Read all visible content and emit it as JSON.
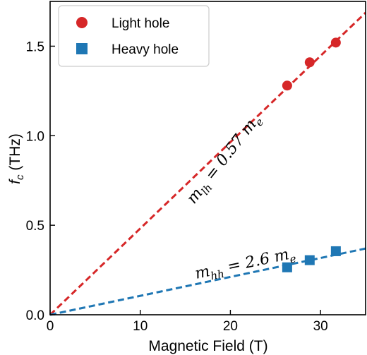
{
  "chart_data": {
    "type": "scatter",
    "xlabel": "Magnetic Field (T)",
    "ylabel": "f",
    "ylabel_sub": "c",
    "ylabel_unit": " (THz)",
    "xlim": [
      0,
      35
    ],
    "ylim": [
      0,
      1.75
    ],
    "xticks": [
      0,
      10,
      20,
      30
    ],
    "xtick_labels": [
      "0",
      "10",
      "20",
      "30"
    ],
    "yticks": [
      0,
      0.5,
      1.0,
      1.5
    ],
    "ytick_labels": [
      "0.0",
      "0.5",
      "1.0",
      "1.5"
    ],
    "grid": false,
    "legend_position": "top-left",
    "series": [
      {
        "name": "Light hole",
        "marker": "circle",
        "color": "#d62728",
        "x": [
          26.3,
          28.8,
          31.7
        ],
        "y": [
          1.28,
          1.41,
          1.52
        ],
        "fit_slope": 0.0482
      },
      {
        "name": "Heavy hole",
        "marker": "square",
        "color": "#1f77b4",
        "x": [
          26.3,
          28.8,
          31.7
        ],
        "y": [
          0.265,
          0.305,
          0.355
        ],
        "fit_slope": 0.01057
      }
    ],
    "annotations": [
      {
        "m": "m",
        "sub": "lh",
        "text": " = 0.57 ",
        "m2": "m",
        "sub2": "e"
      },
      {
        "m": "m",
        "sub": "hh",
        "text": " = 2.6 ",
        "m2": "m",
        "sub2": "e"
      }
    ]
  }
}
